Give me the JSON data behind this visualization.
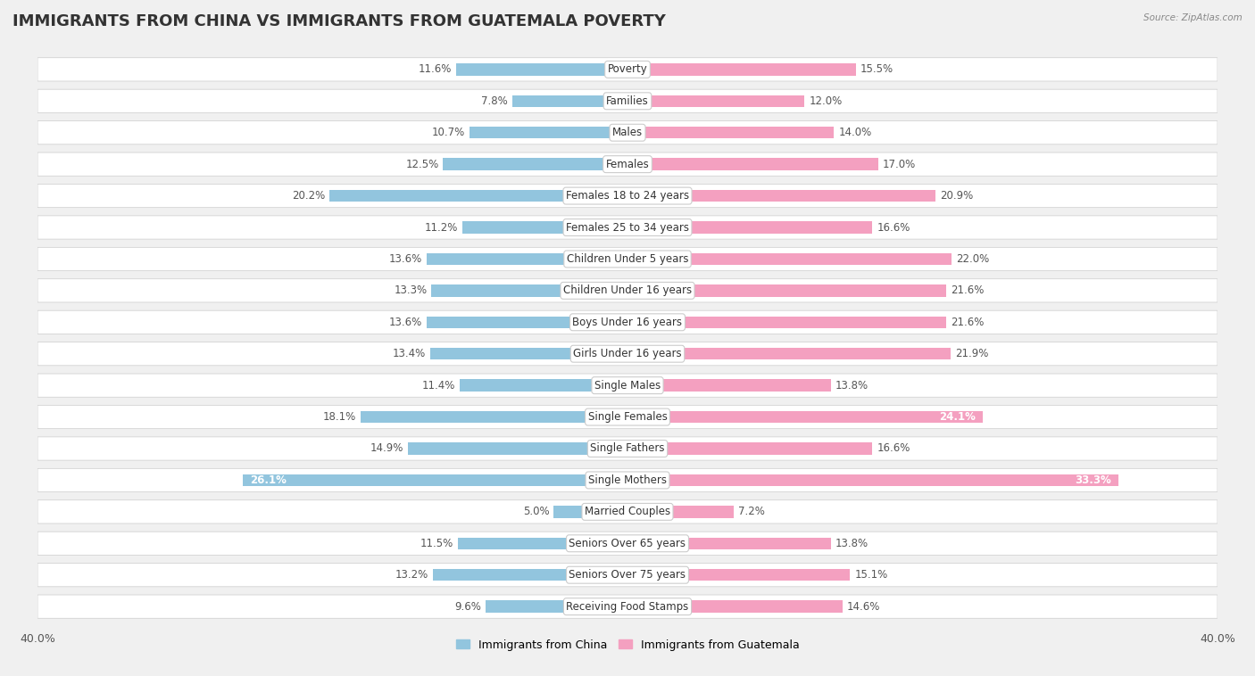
{
  "title": "IMMIGRANTS FROM CHINA VS IMMIGRANTS FROM GUATEMALA POVERTY",
  "source": "Source: ZipAtlas.com",
  "categories": [
    "Poverty",
    "Families",
    "Males",
    "Females",
    "Females 18 to 24 years",
    "Females 25 to 34 years",
    "Children Under 5 years",
    "Children Under 16 years",
    "Boys Under 16 years",
    "Girls Under 16 years",
    "Single Males",
    "Single Females",
    "Single Fathers",
    "Single Mothers",
    "Married Couples",
    "Seniors Over 65 years",
    "Seniors Over 75 years",
    "Receiving Food Stamps"
  ],
  "china_values": [
    11.6,
    7.8,
    10.7,
    12.5,
    20.2,
    11.2,
    13.6,
    13.3,
    13.6,
    13.4,
    11.4,
    18.1,
    14.9,
    26.1,
    5.0,
    11.5,
    13.2,
    9.6
  ],
  "guatemala_values": [
    15.5,
    12.0,
    14.0,
    17.0,
    20.9,
    16.6,
    22.0,
    21.6,
    21.6,
    21.9,
    13.8,
    24.1,
    16.6,
    33.3,
    7.2,
    13.8,
    15.1,
    14.6
  ],
  "china_color": "#92c5de",
  "guatemala_color": "#f4a0c0",
  "china_color_label_bg": "#6baed6",
  "guatemala_color_label_bg": "#e87ab0",
  "china_label": "Immigrants from China",
  "guatemala_label": "Immigrants from Guatemala",
  "xlim": 40.0,
  "background_color": "#f0f0f0",
  "bar_row_bg": "#ffffff",
  "title_fontsize": 13,
  "label_fontsize": 8.5,
  "value_fontsize": 8.5,
  "china_value_special": [
    26.1
  ],
  "guatemala_value_special": [
    24.1,
    33.3
  ]
}
